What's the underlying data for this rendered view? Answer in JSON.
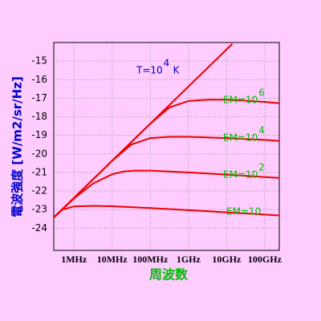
{
  "chart_data": {
    "type": "line",
    "xlabel": "周波数",
    "ylabel": "電波強度 [W/m2/sr/Hz]",
    "log_x": true,
    "xlim": [
      5.47,
      11.38
    ],
    "xticks": [
      {
        "value": 6,
        "label": "1MHz"
      },
      {
        "value": 7,
        "label": "10MHz"
      },
      {
        "value": 8,
        "label": "100MHz"
      },
      {
        "value": 9,
        "label": "1GHz"
      },
      {
        "value": 10,
        "label": "10GHz"
      },
      {
        "value": 11,
        "label": "100GHz"
      }
    ],
    "ylim": [
      -25.2,
      -14.0
    ],
    "yticks": [
      -24,
      -23,
      -22,
      -21,
      -20,
      -19,
      -18,
      -17,
      -16,
      -15
    ],
    "grid": true,
    "color": "#ee0000",
    "series": [
      {
        "x": [
          5.47,
          10.15
        ],
        "values": [
          -23.43,
          -14.07
        ]
      },
      {
        "x": [
          5.47,
          5.7,
          6,
          6.5,
          7,
          8,
          9,
          10,
          11,
          11.38
        ],
        "values": [
          -23.43,
          -23.0,
          -22.83,
          -22.8,
          -22.82,
          -22.92,
          -23.03,
          -23.15,
          -23.27,
          -23.32
        ]
      },
      {
        "x": [
          5.47,
          6,
          6.5,
          7,
          7.3,
          7.6,
          8,
          8.5,
          9,
          10,
          11,
          11.38
        ],
        "values": [
          -23.43,
          -22.4,
          -21.6,
          -21.1,
          -20.95,
          -20.9,
          -20.9,
          -20.95,
          -21.0,
          -21.12,
          -21.25,
          -21.3
        ]
      },
      {
        "x": [
          5.47,
          6,
          7,
          7.5,
          8,
          8.5,
          9,
          10,
          11,
          11.38
        ],
        "values": [
          -23.43,
          -22.37,
          -20.37,
          -19.5,
          -19.15,
          -19.08,
          -19.08,
          -19.15,
          -19.25,
          -19.3
        ]
      },
      {
        "x": [
          5.47,
          6,
          7,
          8,
          8.5,
          9,
          9.5,
          10,
          11,
          11.38
        ],
        "values": [
          -23.43,
          -22.37,
          -20.37,
          -18.37,
          -17.5,
          -17.15,
          -17.08,
          -17.08,
          -17.2,
          -17.27
        ]
      }
    ],
    "annotations": [
      {
        "text": "T=10",
        "sup": "4",
        "unit": "K"
      },
      {
        "text": "EM=10",
        "sup": "6"
      },
      {
        "text": "EM=10",
        "sup": "4"
      },
      {
        "text": "EM=10",
        "sup": "2"
      },
      {
        "text": "EM=10"
      }
    ]
  }
}
